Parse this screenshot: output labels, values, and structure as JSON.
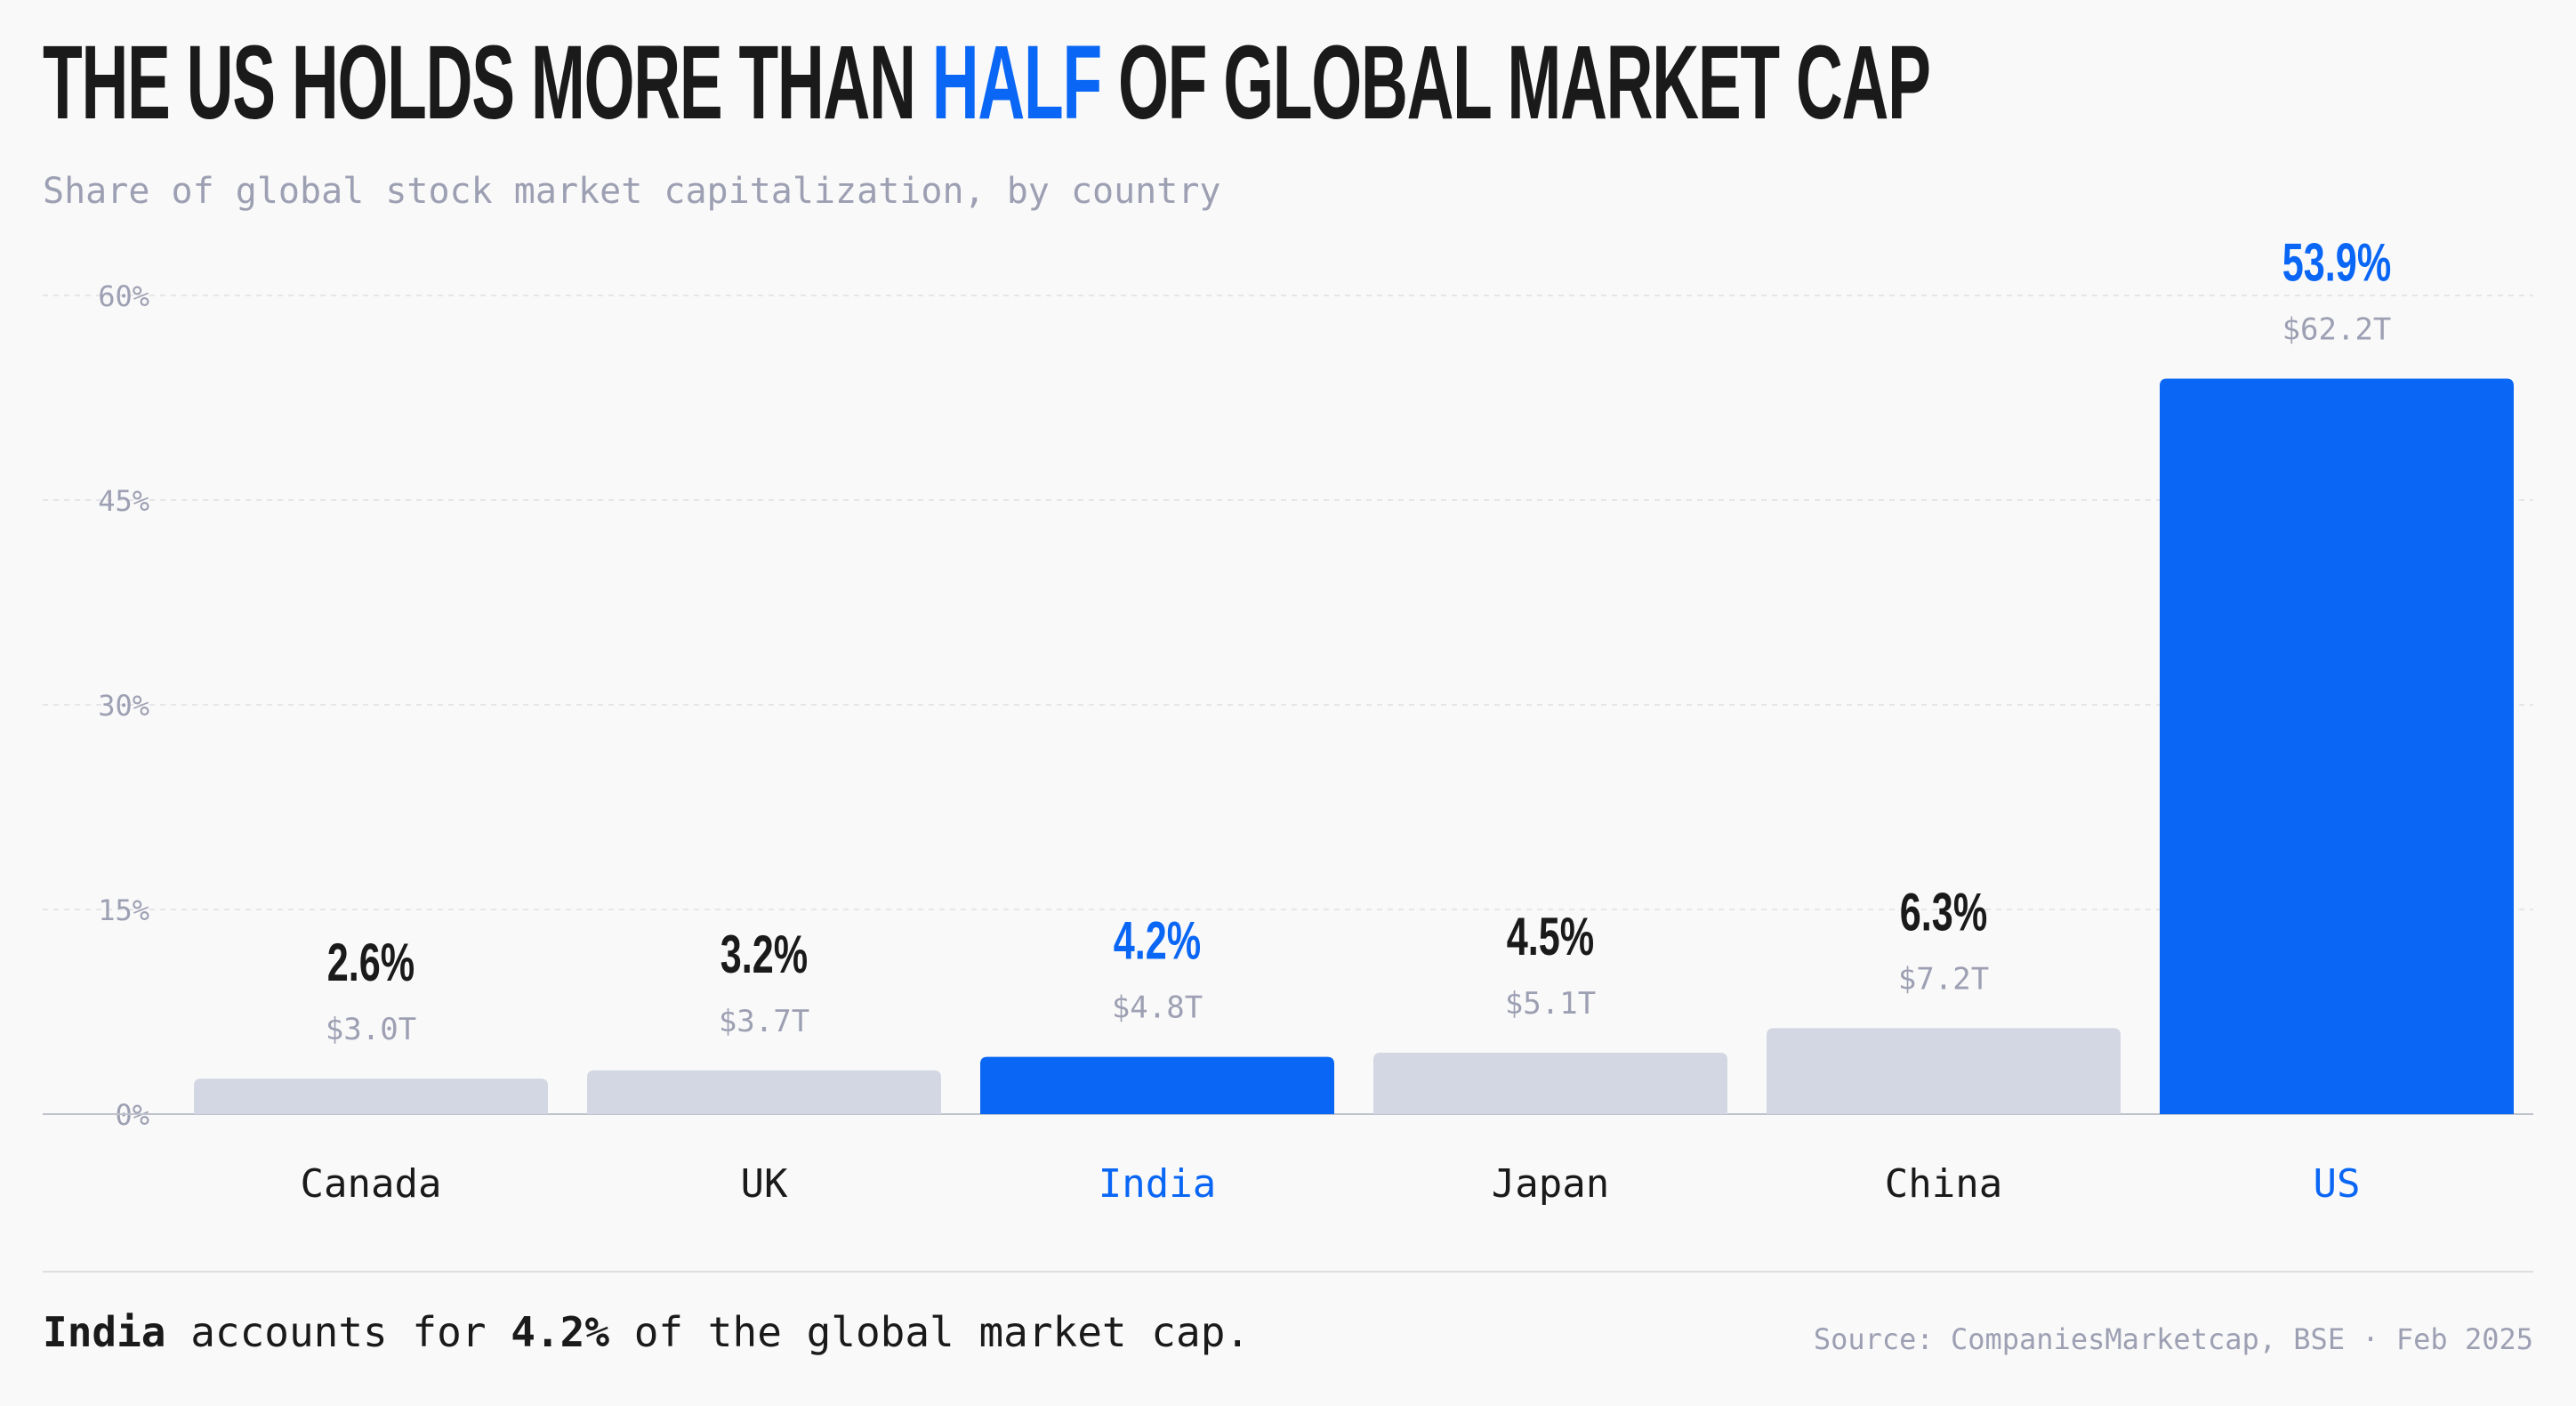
{
  "title": {
    "before": "The US holds more than",
    "highlight": "half",
    "after": "of global market cap"
  },
  "subtitle": "Share of global stock market capitalization, by country",
  "colors": {
    "accent": "#0a66f5",
    "bar_default": "#d3d7e3",
    "text_dark": "#1a1a1a",
    "text_muted": "#9da0b3",
    "grid": "#e6e6ea"
  },
  "chart_data": {
    "type": "bar",
    "categories": [
      "Canada",
      "UK",
      "India",
      "Japan",
      "China",
      "US"
    ],
    "values": [
      2.6,
      3.2,
      4.2,
      4.5,
      6.3,
      53.9
    ],
    "value_labels": [
      "2.6%",
      "3.2%",
      "4.2%",
      "4.5%",
      "6.3%",
      "53.9%"
    ],
    "secondary_labels": [
      "$3.0T",
      "$3.7T",
      "$4.8T",
      "$5.1T",
      "$7.2T",
      "$62.2T"
    ],
    "highlighted": [
      "India",
      "US"
    ],
    "ylim": [
      0,
      60
    ],
    "yticks": [
      0,
      15,
      30,
      45,
      60
    ],
    "ytick_labels": [
      "0%",
      "15%",
      "30%",
      "45%",
      "60%"
    ],
    "grid": true,
    "xlabel": "",
    "ylabel": ""
  },
  "footer": {
    "note_country": "India",
    "note_mid": "accounts for",
    "note_value": "4.2%",
    "note_end": "of the global market cap.",
    "source": "Source: CompaniesMarketcap, BSE · Feb 2025"
  }
}
